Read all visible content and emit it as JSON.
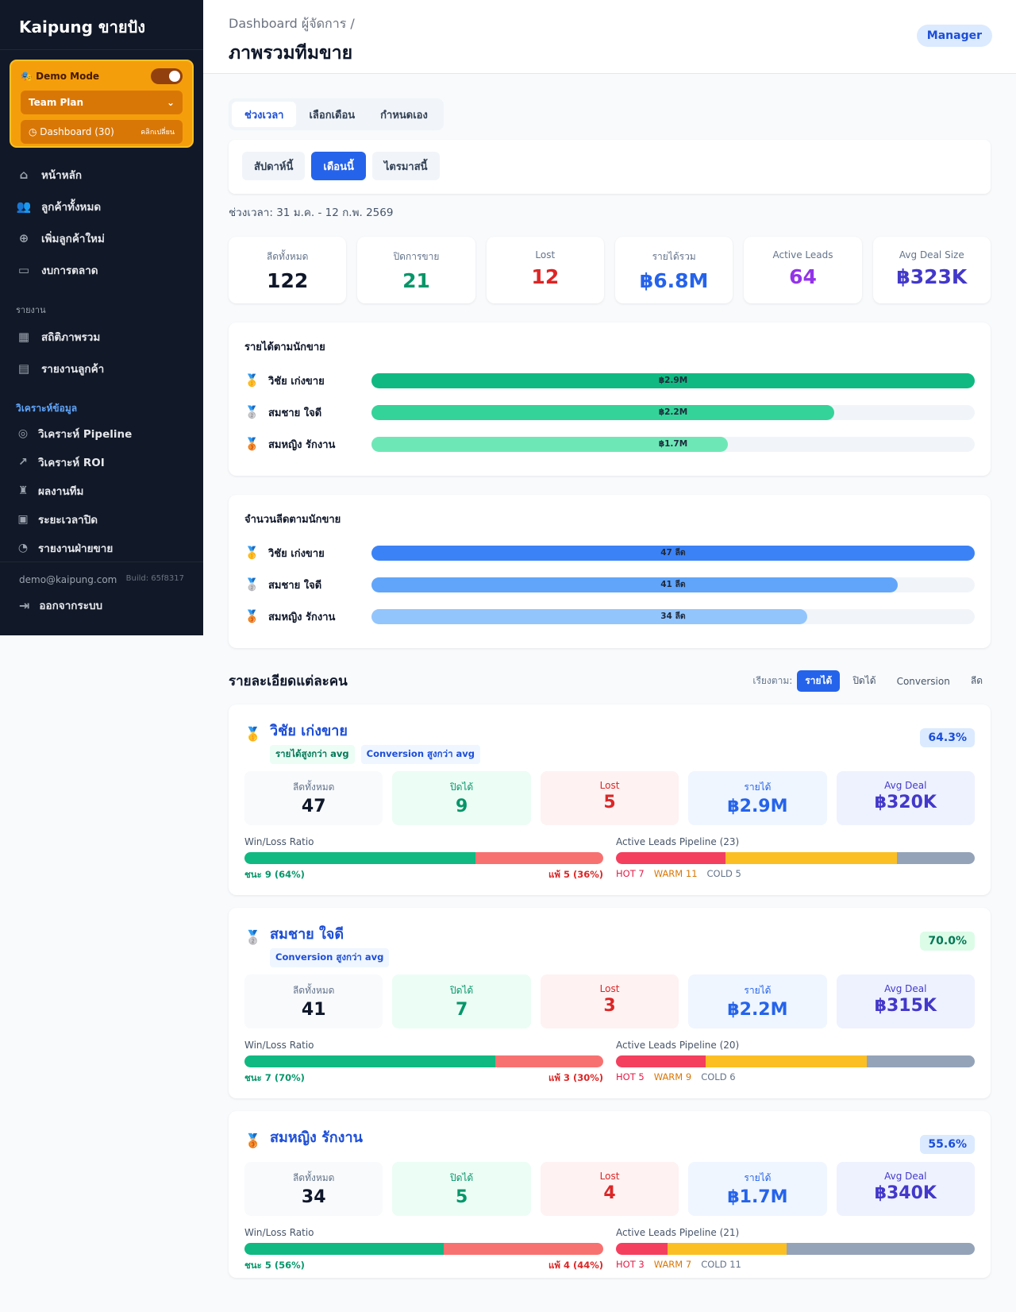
{
  "sidebar": {
    "brand": "Kaipung ขายปัง",
    "demo": {
      "label": "🎭 Demo Mode",
      "plan": "Team Plan",
      "dashboard": "Dashboard (30)",
      "switch_hint": "คลิกเปลี่ยน"
    },
    "items": [
      {
        "label": "หน้าหลัก",
        "icon": "home-icon"
      },
      {
        "label": "ลูกค้าทั้งหมด",
        "icon": "users-icon"
      },
      {
        "label": "เพิ่มลูกค้าใหม่",
        "icon": "user-plus-icon"
      },
      {
        "label": "งบการตลาด",
        "icon": "wallet-icon"
      }
    ],
    "report_section": "รายงาน",
    "report_items": [
      {
        "label": "สถิติภาพรวม",
        "icon": "grid-icon"
      },
      {
        "label": "รายงานลูกค้า",
        "icon": "clipboard-icon"
      }
    ],
    "analysis_section": "วิเคราะห์ข้อมูล",
    "analysis_items": [
      {
        "label": "วิเคราะห์ Pipeline",
        "icon": "target-icon"
      },
      {
        "label": "วิเคราะห์ ROI",
        "icon": "trend-icon"
      },
      {
        "label": "ผลงานทีม",
        "icon": "trophy-icon"
      },
      {
        "label": "ระยะเวลาปิด",
        "icon": "briefcase-icon"
      },
      {
        "label": "รายงานฝ่ายขาย",
        "icon": "pie-icon"
      }
    ],
    "email": "demo@kaipung.com",
    "build": "Build: 65f8317",
    "logout": "ออกจากระบบ"
  },
  "header": {
    "crumb": "Dashboard ผู้จัดการ",
    "sep": "/",
    "title": "ภาพรวมทีมขาย",
    "role": "Manager"
  },
  "tabs": [
    "ช่วงเวลา",
    "เลือกเดือน",
    "กำหนดเอง"
  ],
  "ranges": [
    "สัปดาห์นี้",
    "เดือนนี้",
    "ไตรมาสนี้"
  ],
  "range_text": "ช่วงเวลา: 31 ม.ค. - 12 ก.พ. 2569",
  "kpis": [
    {
      "label": "ลีดทั้งหมด",
      "value": "122",
      "color": "#0f172a"
    },
    {
      "label": "ปิดการขาย",
      "value": "21",
      "color": "#059669"
    },
    {
      "label": "Lost",
      "value": "12",
      "color": "#dc2626"
    },
    {
      "label": "รายได้รวม",
      "value": "฿6.8M",
      "color": "#2563eb"
    },
    {
      "label": "Active Leads",
      "value": "64",
      "color": "#9333ea"
    },
    {
      "label": "Avg Deal Size",
      "value": "฿323K",
      "color": "#4338ca"
    }
  ],
  "revenue_by_rep": {
    "title": "รายได้ตามนักขาย",
    "rows": [
      {
        "medal": "🥇",
        "name": "วิชัย เก่งขาย",
        "label": "฿2.9M",
        "fraction": 1.0,
        "color": "#10b981"
      },
      {
        "medal": "🥈",
        "name": "สมชาย ใจดี",
        "label": "฿2.2M",
        "fraction": 0.767,
        "color": "#34d399"
      },
      {
        "medal": "🥉",
        "name": "สมหญิง รักงาน",
        "label": "฿1.7M",
        "fraction": 0.591,
        "color": "#6ee7b7"
      }
    ]
  },
  "leads_by_rep": {
    "title": "จำนวนลีดตามนักขาย",
    "rows": [
      {
        "medal": "🥇",
        "name": "วิชัย เก่งขาย",
        "label": "47 ลีด",
        "fraction": 1.0,
        "color": "#3b82f6"
      },
      {
        "medal": "🥈",
        "name": "สมชาย ใจดี",
        "label": "41 ลีด",
        "fraction": 0.872,
        "color": "#60a5fa"
      },
      {
        "medal": "🥉",
        "name": "สมหญิง รักงาน",
        "label": "34 ลีด",
        "fraction": 0.723,
        "color": "#93c5fd"
      }
    ]
  },
  "details": {
    "title": "รายละเอียดแต่ละคน",
    "sort_label": "เรียงตาม:",
    "sort_options": [
      "รายได้",
      "ปิดได้",
      "Conversion",
      "ลีด"
    ]
  },
  "stat_labels": [
    "ลีดทั้งหมด",
    "ปิดได้",
    "Lost",
    "รายได้",
    "Avg Deal"
  ],
  "winloss_title": "Win/Loss Ratio",
  "people": [
    {
      "medal": "🥇",
      "name": "วิชัย เก่งขาย",
      "tags": [
        {
          "text": "รายได้สูงกว่า avg",
          "kind": "g"
        },
        {
          "text": "Conversion สูงกว่า avg",
          "kind": "b"
        }
      ],
      "rate": "64.3%",
      "rate_kind": "b",
      "stats": [
        "47",
        "9",
        "5",
        "฿2.9M",
        "฿320K"
      ],
      "win": 9,
      "loss": 5,
      "win_label": "ชนะ 9 (64%)",
      "loss_label": "แพ้ 5 (36%)",
      "pipeline_title": "Active Leads Pipeline (23)",
      "hot": 7,
      "warm": 11,
      "cold": 5,
      "hot_label": "HOT 7",
      "warm_label": "WARM 11",
      "cold_label": "COLD 5"
    },
    {
      "medal": "🥈",
      "name": "สมชาย ใจดี",
      "tags": [
        {
          "text": "Conversion สูงกว่า avg",
          "kind": "b"
        }
      ],
      "rate": "70.0%",
      "rate_kind": "g",
      "stats": [
        "41",
        "7",
        "3",
        "฿2.2M",
        "฿315K"
      ],
      "win": 7,
      "loss": 3,
      "win_label": "ชนะ 7 (70%)",
      "loss_label": "แพ้ 3 (30%)",
      "pipeline_title": "Active Leads Pipeline (20)",
      "hot": 5,
      "warm": 9,
      "cold": 6,
      "hot_label": "HOT 5",
      "warm_label": "WARM 9",
      "cold_label": "COLD 6"
    },
    {
      "medal": "🥉",
      "name": "สมหญิง รักงาน",
      "tags": [],
      "rate": "55.6%",
      "rate_kind": "b",
      "stats": [
        "34",
        "5",
        "4",
        "฿1.7M",
        "฿340K"
      ],
      "win": 5,
      "loss": 4,
      "win_label": "ชนะ 5 (56%)",
      "loss_label": "แพ้ 4 (44%)",
      "pipeline_title": "Active Leads Pipeline (21)",
      "hot": 3,
      "warm": 7,
      "cold": 11,
      "hot_label": "HOT 3",
      "warm_label": "WARM 7",
      "cold_label": "COLD 11"
    }
  ]
}
